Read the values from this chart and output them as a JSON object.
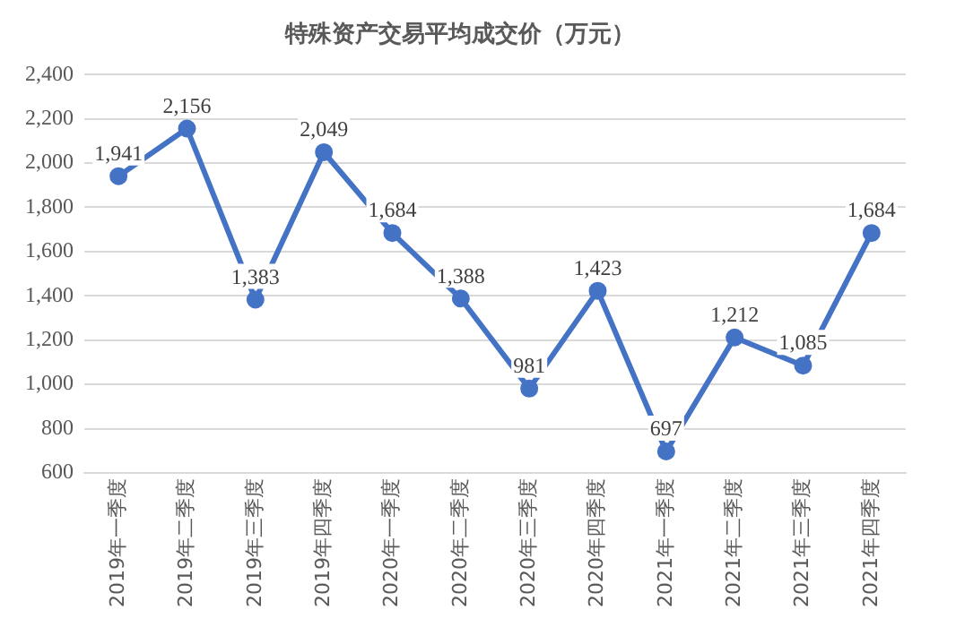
{
  "chart_data": {
    "type": "line",
    "title": "特殊资产交易平均成交价（万元）",
    "categories": [
      "2019年一季度",
      "2019年二季度",
      "2019年三季度",
      "2019年四季度",
      "2020年一季度",
      "2020年二季度",
      "2020年三季度",
      "2020年四季度",
      "2021年一季度",
      "2021年二季度",
      "2021年三季度",
      "2021年四季度"
    ],
    "series": [
      {
        "color": "#4472c4",
        "values": [
          1941,
          2156,
          1383,
          2049,
          1684,
          1388,
          981,
          1423,
          697,
          1212,
          1085,
          1684
        ],
        "value_labels": [
          "1,941",
          "2,156",
          "1,383",
          "2,049",
          "1,684",
          "1,388",
          "981",
          "1,423",
          "697",
          "1,212",
          "1,085",
          "1,684"
        ]
      }
    ],
    "ylim": [
      600,
      2400
    ],
    "yticks": [
      {
        "value": 600,
        "label": "600"
      },
      {
        "value": 800,
        "label": "800"
      },
      {
        "value": 1000,
        "label": "1,000"
      },
      {
        "value": 1200,
        "label": "1,200"
      },
      {
        "value": 1400,
        "label": "1,400"
      },
      {
        "value": 1600,
        "label": "1,600"
      },
      {
        "value": 1800,
        "label": "1,800"
      },
      {
        "value": 2000,
        "label": "2,000"
      },
      {
        "value": 2200,
        "label": "2,200"
      },
      {
        "value": 2400,
        "label": "2,400"
      }
    ],
    "grid": "y",
    "marker": "circle",
    "line_style": "solid",
    "legend": false
  }
}
